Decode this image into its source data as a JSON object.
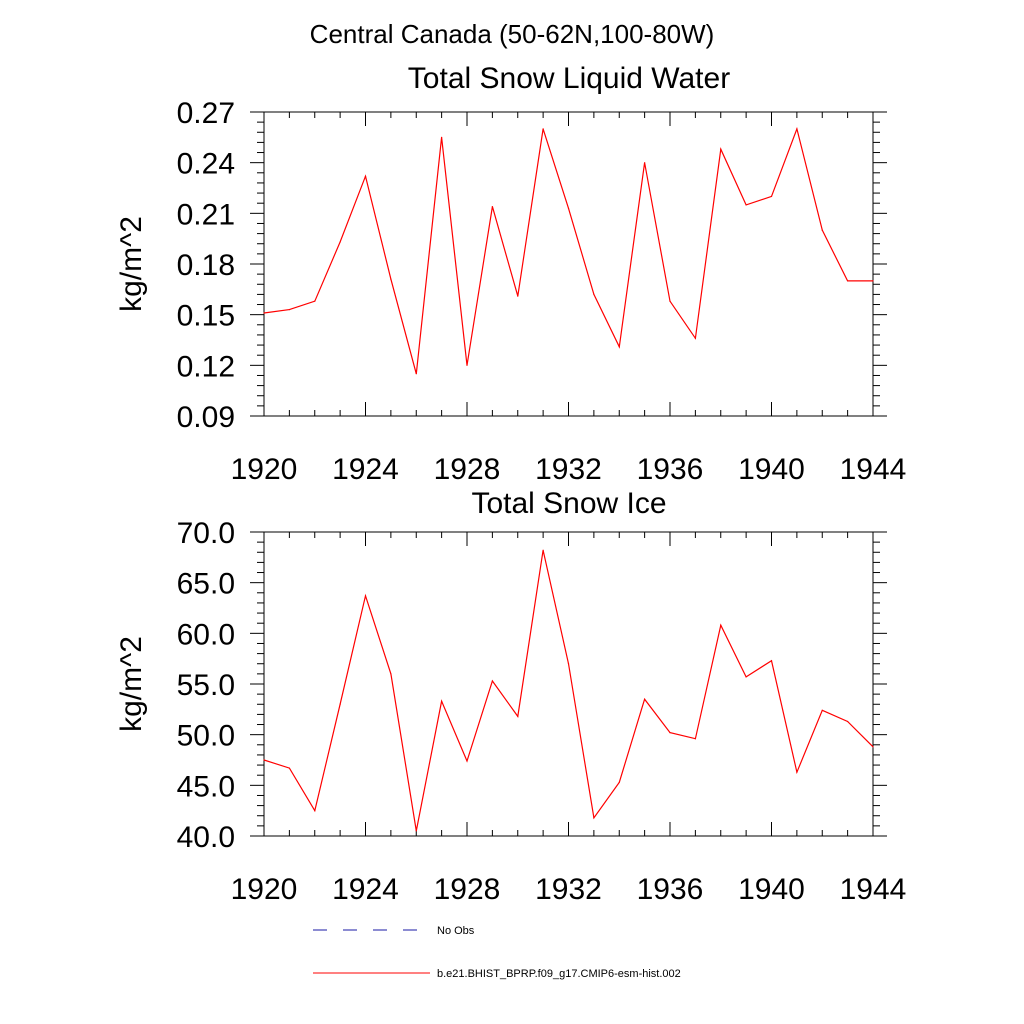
{
  "page_title": "Central Canada (50-62N,100-80W)",
  "legend": [
    {
      "label": "No Obs",
      "style": "dashed",
      "color": "#1a1aa6"
    },
    {
      "label": "b.e21.BHIST_BPRP.f09_g17.CMIP6-esm-hist.002",
      "style": "solid",
      "color": "#ff0000"
    }
  ],
  "chart_data": [
    {
      "type": "line",
      "title": "Total Snow Liquid Water",
      "xlabel": "",
      "ylabel": "kg/m^2",
      "xlim": [
        1920,
        1944
      ],
      "ylim": [
        0.09,
        0.27
      ],
      "xticks": [
        1920,
        1924,
        1928,
        1932,
        1936,
        1940,
        1944
      ],
      "yticks": [
        "0.09",
        "0.12",
        "0.15",
        "0.18",
        "0.21",
        "0.24",
        "0.27"
      ],
      "series": [
        {
          "name": "b.e21.BHIST_BPRP.f09_g17.CMIP6-esm-hist.002",
          "color": "#ff0000",
          "x": [
            1920,
            1921,
            1922,
            1923,
            1924,
            1925,
            1926,
            1927,
            1928,
            1929,
            1930,
            1931,
            1932,
            1933,
            1934,
            1935,
            1936,
            1937,
            1938,
            1939,
            1940,
            1941,
            1942,
            1943,
            1944
          ],
          "y": [
            0.151,
            0.153,
            0.158,
            0.193,
            0.232,
            0.171,
            0.115,
            0.255,
            0.12,
            0.214,
            0.161,
            0.26,
            0.213,
            0.162,
            0.131,
            0.24,
            0.158,
            0.136,
            0.248,
            0.215,
            0.22,
            0.26,
            0.2,
            0.17,
            0.17
          ]
        }
      ]
    },
    {
      "type": "line",
      "title": "Total Snow Ice",
      "xlabel": "",
      "ylabel": "kg/m^2",
      "xlim": [
        1920,
        1944
      ],
      "ylim": [
        40,
        70
      ],
      "xticks": [
        1920,
        1924,
        1928,
        1932,
        1936,
        1940,
        1944
      ],
      "yticks": [
        "40.0",
        "45.0",
        "50.0",
        "55.0",
        "60.0",
        "65.0",
        "70.0"
      ],
      "series": [
        {
          "name": "b.e21.BHIST_BPRP.f09_g17.CMIP6-esm-hist.002",
          "color": "#ff0000",
          "x": [
            1920,
            1921,
            1922,
            1923,
            1924,
            1925,
            1926,
            1927,
            1928,
            1929,
            1930,
            1931,
            1932,
            1933,
            1934,
            1935,
            1936,
            1937,
            1938,
            1939,
            1940,
            1941,
            1942,
            1943,
            1944
          ],
          "y": [
            47.5,
            46.7,
            42.5,
            53.0,
            63.7,
            56.0,
            40.5,
            53.3,
            47.4,
            55.3,
            51.8,
            68.2,
            57.0,
            41.8,
            45.3,
            53.5,
            50.2,
            49.6,
            60.8,
            55.7,
            57.3,
            46.3,
            52.4,
            51.3,
            48.8
          ]
        }
      ]
    }
  ]
}
